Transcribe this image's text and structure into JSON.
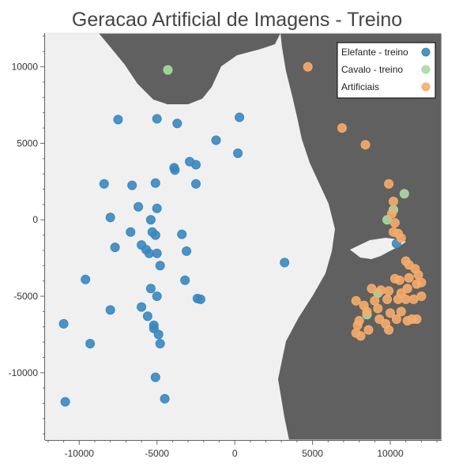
{
  "colors": {
    "background": "#ffffff",
    "region_light": "#f0f0f0",
    "region_dark": "#606060",
    "elefante": "#3a87bf",
    "cavalo": "#a8dba0",
    "artificiais": "#f6ac6a"
  },
  "chart_data": {
    "type": "scatter",
    "title": "Geracao Artificial de Imagens - Treino",
    "xlabel": "",
    "ylabel": "",
    "xlim": [
      -12200,
      13300
    ],
    "ylim": [
      -14400,
      12200
    ],
    "x_ticks": [
      -10000,
      -5000,
      0,
      5000,
      10000
    ],
    "y_ticks": [
      10000,
      5000,
      0,
      -5000,
      -10000
    ],
    "x_tick_labels": [
      "-10000",
      "-5000",
      "0",
      "5000",
      "10000"
    ],
    "y_tick_labels": [
      "10000",
      "5000",
      "0",
      "-5000",
      "-10000"
    ],
    "grid": false,
    "legend_position": "top-right",
    "series": [
      {
        "name": "Elefante - treino",
        "color": "#3a87bf",
        "points": [
          [
            -7500,
            6550
          ],
          [
            -5000,
            6600
          ],
          [
            -3700,
            6300
          ],
          [
            -1200,
            5200
          ],
          [
            300,
            6700
          ],
          [
            200,
            4350
          ],
          [
            -8400,
            2350
          ],
          [
            -6600,
            2250
          ],
          [
            -5100,
            2400
          ],
          [
            -3900,
            3400
          ],
          [
            -3850,
            3250
          ],
          [
            -2900,
            3800
          ],
          [
            -2500,
            3600
          ],
          [
            -2500,
            2350
          ],
          [
            -6200,
            850
          ],
          [
            -5000,
            750
          ],
          [
            -8000,
            150
          ],
          [
            -5400,
            0
          ],
          [
            -6700,
            -800
          ],
          [
            -5300,
            -800
          ],
          [
            -5100,
            -1000
          ],
          [
            -3400,
            -950
          ],
          [
            -7700,
            -1800
          ],
          [
            -6000,
            -1650
          ],
          [
            -5700,
            -1950
          ],
          [
            -5500,
            -2200
          ],
          [
            -5000,
            -2200
          ],
          [
            -3100,
            -2050
          ],
          [
            -4800,
            -3000
          ],
          [
            -9600,
            -3900
          ],
          [
            -3200,
            -3950
          ],
          [
            -5400,
            -4500
          ],
          [
            -5000,
            -5000
          ],
          [
            3200,
            -2800
          ],
          [
            -8000,
            -5900
          ],
          [
            -6000,
            -5700
          ],
          [
            -5600,
            -6300
          ],
          [
            -2400,
            -5150
          ],
          [
            -2200,
            -5200
          ],
          [
            -5200,
            -6900
          ],
          [
            -5200,
            -7100
          ],
          [
            -4900,
            -7500
          ],
          [
            -4800,
            -8100
          ],
          [
            -11000,
            -6800
          ],
          [
            -9300,
            -8100
          ],
          [
            -5100,
            -10300
          ],
          [
            -4500,
            -11700
          ],
          [
            -10900,
            -11900
          ],
          [
            10400,
            -1550
          ]
        ]
      },
      {
        "name": "Cavalo - treino",
        "color": "#a8dba0",
        "points": [
          [
            -4300,
            9800
          ],
          [
            10900,
            1700
          ],
          [
            10200,
            650
          ],
          [
            9800,
            0
          ],
          [
            8500,
            -6200
          ],
          [
            9200,
            -4800
          ]
        ]
      },
      {
        "name": "Artificiais",
        "color": "#f6ac6a",
        "points": [
          [
            4700,
            10000
          ],
          [
            6900,
            6000
          ],
          [
            8400,
            4900
          ],
          [
            9900,
            2350
          ],
          [
            10200,
            1200
          ],
          [
            10100,
            400
          ],
          [
            10300,
            -200
          ],
          [
            10500,
            -900
          ],
          [
            10200,
            -800
          ],
          [
            10700,
            -1200
          ],
          [
            11000,
            -2700
          ],
          [
            11200,
            -2950
          ],
          [
            11600,
            -3200
          ],
          [
            11200,
            -3800
          ],
          [
            10300,
            -3850
          ],
          [
            10600,
            -3950
          ],
          [
            11800,
            -3600
          ],
          [
            12000,
            -4100
          ],
          [
            11700,
            -4200
          ],
          [
            8800,
            -4500
          ],
          [
            9400,
            -4600
          ],
          [
            9900,
            -4650
          ],
          [
            10700,
            -4800
          ],
          [
            9000,
            -5300
          ],
          [
            9800,
            -5200
          ],
          [
            10500,
            -5200
          ],
          [
            11000,
            -5200
          ],
          [
            11500,
            -5200
          ],
          [
            12000,
            -5000
          ],
          [
            7800,
            -5300
          ],
          [
            8300,
            -5600
          ],
          [
            8500,
            -6000
          ],
          [
            9200,
            -5800
          ],
          [
            10000,
            -6100
          ],
          [
            10700,
            -6000
          ],
          [
            9300,
            -6500
          ],
          [
            9700,
            -6800
          ],
          [
            9900,
            -7200
          ],
          [
            10400,
            -6500
          ],
          [
            11100,
            -6600
          ],
          [
            11400,
            -6500
          ],
          [
            11700,
            -6500
          ],
          [
            8000,
            -6600
          ],
          [
            7900,
            -6900
          ],
          [
            8600,
            -7200
          ],
          [
            7800,
            -7400
          ],
          [
            8100,
            -7600
          ],
          [
            11100,
            -4500
          ]
        ]
      }
    ]
  }
}
